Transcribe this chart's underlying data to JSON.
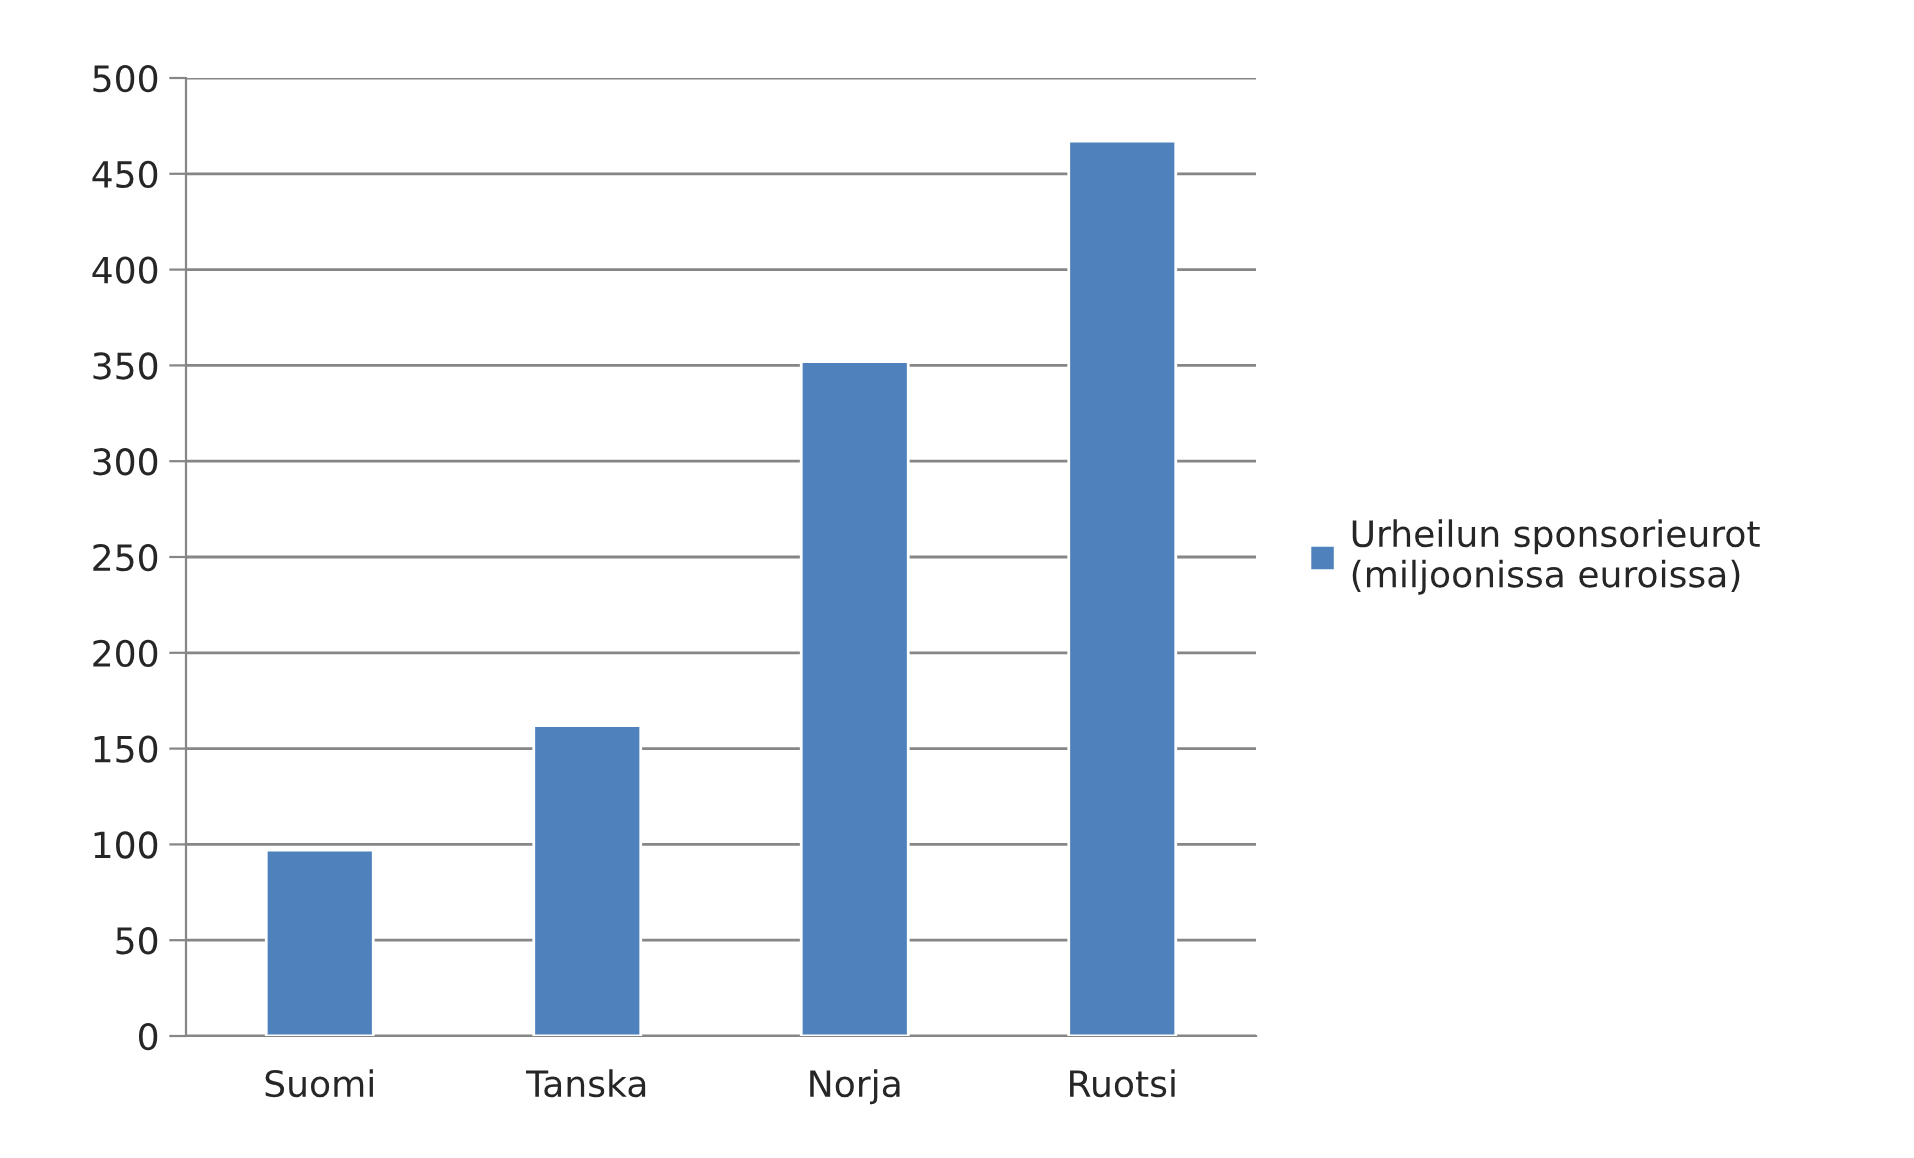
{
  "chart_data": {
    "type": "bar",
    "categories": [
      "Suomi",
      "Tanska",
      "Norja",
      "Ruotsi"
    ],
    "series": [
      {
        "name": "Urheilun sponsorieurot\n(miljoonissa euroissa)",
        "color": "#4f81bd",
        "values": [
          97,
          162,
          352,
          467
        ]
      }
    ],
    "ylim": [
      0,
      500
    ],
    "yticks": [
      0,
      50,
      100,
      150,
      200,
      250,
      300,
      350,
      400,
      450,
      500
    ],
    "grid": "y",
    "legend": "right"
  }
}
